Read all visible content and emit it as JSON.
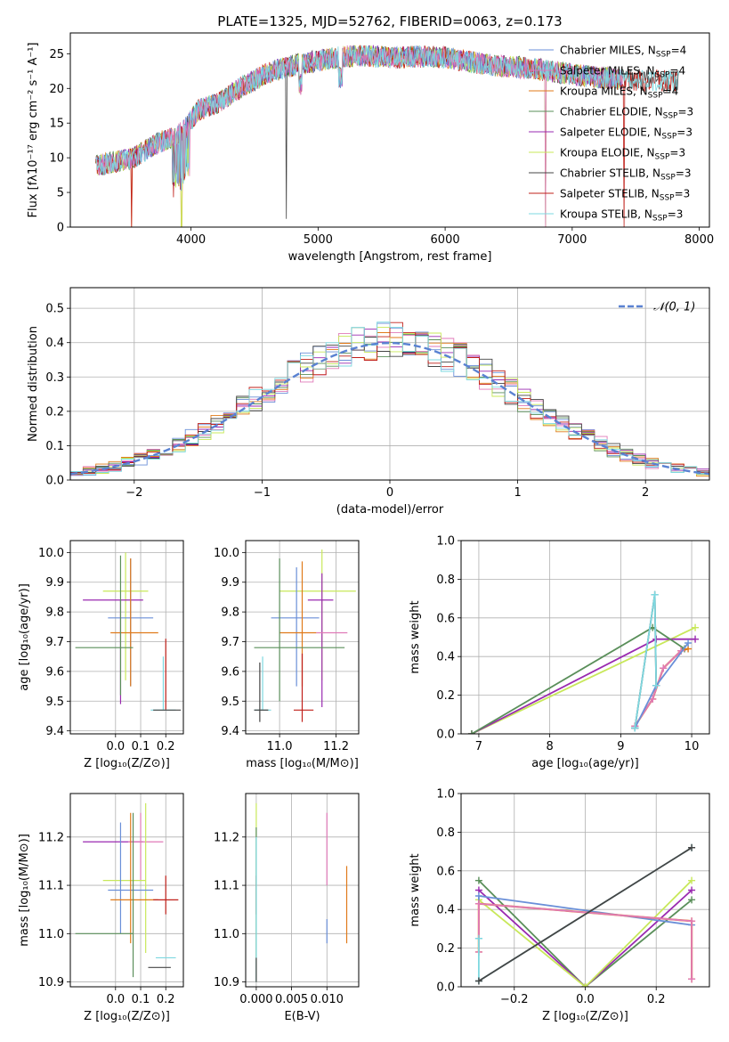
{
  "figure": {
    "title": "PLATE=1325, MJD=52762, FIBERID=0063, z=0.173"
  },
  "colors": {
    "Chabrier MILES": "#6a8fd8",
    "Salpeter MILES": "#e07ab8",
    "Kroupa MILES": "#e07a1a",
    "Chabrier ELODIE": "#5a8f5a",
    "Salpeter ELODIE": "#9a2ab0",
    "Kroupa ELODIE": "#c8e85a",
    "Chabrier STELIB": "#444444",
    "Salpeter STELIB": "#c0201a",
    "Kroupa STELIB": "#7ed8e0"
  },
  "chart_data": [
    {
      "id": "spectrum",
      "type": "line",
      "xlabel": "wavelength [Angstrom, rest frame]",
      "ylabel": "Flux [fλ10⁻¹⁷ erg cm⁻² s⁻¹ A⁻¹]",
      "xlim": [
        3050,
        8080
      ],
      "ylim": [
        0,
        28
      ],
      "xticks": [
        4000,
        5000,
        6000,
        7000,
        8000
      ],
      "yticks": [
        0,
        5,
        10,
        15,
        20,
        25
      ],
      "legend_placement": "right",
      "legend": [
        {
          "name": "Chabrier MILES, N",
          "sub": "SSP",
          "tail": "=4"
        },
        {
          "name": "Salpeter MILES, N",
          "sub": "SSP",
          "tail": "=4"
        },
        {
          "name": "Kroupa MILES, N",
          "sub": "SSP",
          "tail": "=4"
        },
        {
          "name": "Chabrier ELODIE, N",
          "sub": "SSP",
          "tail": "=3"
        },
        {
          "name": "Salpeter ELODIE, N",
          "sub": "SSP",
          "tail": "=3"
        },
        {
          "name": "Kroupa ELODIE, N",
          "sub": "SSP",
          "tail": "=3"
        },
        {
          "name": "Chabrier STELIB, N",
          "sub": "SSP",
          "tail": "=3"
        },
        {
          "name": "Salpeter STELIB, N",
          "sub": "SSP",
          "tail": "=3"
        },
        {
          "name": "Kroupa STELIB, N",
          "sub": "SSP",
          "tail": "=3"
        }
      ],
      "continuum": [
        [
          3250,
          8.8
        ],
        [
          3400,
          9.4
        ],
        [
          3550,
          10.0
        ],
        [
          3700,
          11.8
        ],
        [
          3850,
          13.0
        ],
        [
          3950,
          14.0
        ],
        [
          4050,
          16.8
        ],
        [
          4200,
          17.8
        ],
        [
          4400,
          20.2
        ],
        [
          4600,
          22.2
        ],
        [
          4800,
          23.3
        ],
        [
          5000,
          24.0
        ],
        [
          5200,
          24.6
        ],
        [
          5400,
          24.7
        ],
        [
          5600,
          24.4
        ],
        [
          5800,
          24.6
        ],
        [
          6000,
          24.5
        ],
        [
          6200,
          23.8
        ],
        [
          6400,
          23.3
        ],
        [
          6600,
          23.0
        ],
        [
          6800,
          22.6
        ],
        [
          7000,
          22.0
        ],
        [
          7200,
          21.6
        ],
        [
          7400,
          21.3
        ],
        [
          7600,
          21.2
        ],
        [
          7840,
          21.0
        ]
      ]
    },
    {
      "id": "residuals",
      "type": "bar",
      "xlabel": "(data-model)/error",
      "ylabel": "Normed distribution",
      "xlim": [
        -2.5,
        2.5
      ],
      "ylim": [
        0,
        0.56
      ],
      "xticks": [
        -2,
        -1,
        0,
        1,
        2
      ],
      "yticks": [
        0.0,
        0.1,
        0.2,
        0.3,
        0.4,
        0.5
      ],
      "grid": true,
      "legend_placement": "top-right",
      "legend": [
        {
          "name": "𝒩(0, 1)"
        }
      ],
      "bin_edges_start": -2.5,
      "bin_width": 0.1
    },
    {
      "id": "age-Z",
      "type": "scatter",
      "xlabel": "Z [log₁₀(Z/Z⊙)]",
      "ylabel": "age  [log₁₀(age/yr)]",
      "xlim": [
        -0.18,
        0.27
      ],
      "ylim": [
        9.39,
        10.04
      ],
      "xticks": [
        0.0,
        0.1,
        0.2
      ],
      "yticks": [
        9.4,
        9.5,
        9.6,
        9.7,
        9.8,
        9.9,
        10.0
      ],
      "grid": true,
      "points": [
        {
          "c": "Kroupa ELODIE",
          "x": 0.04,
          "y": 9.87,
          "xe": [
            -0.05,
            0.13
          ],
          "ye": [
            9.57,
            10.0
          ]
        },
        {
          "c": "Salpeter ELODIE",
          "x": 0.02,
          "y": 9.84,
          "xe": [
            -0.13,
            0.11
          ],
          "ye": [
            9.49,
            9.84
          ]
        },
        {
          "c": "Chabrier MILES",
          "x": 0.06,
          "y": 9.78,
          "xe": [
            -0.03,
            0.15
          ],
          "ye": [
            9.55,
            9.98
          ]
        },
        {
          "c": "Kroupa MILES",
          "x": 0.06,
          "y": 9.73,
          "xe": [
            -0.02,
            0.17
          ],
          "ye": [
            9.55,
            9.98
          ]
        },
        {
          "c": "Chabrier ELODIE",
          "x": 0.02,
          "y": 9.68,
          "xe": [
            -0.16,
            0.07
          ],
          "ye": [
            9.52,
            9.99
          ]
        },
        {
          "c": "Salpeter STELIB",
          "x": 0.2,
          "y": 9.64,
          "xe": [
            0.2,
            0.2
          ],
          "ye": [
            9.47,
            9.71
          ]
        },
        {
          "c": "Kroupa STELIB",
          "x": 0.19,
          "y": 9.47,
          "xe": [
            0.14,
            0.24
          ],
          "ye": [
            9.47,
            9.65
          ]
        },
        {
          "c": "Chabrier STELIB",
          "x": 0.2,
          "y": 9.47,
          "xe": [
            0.15,
            0.26
          ],
          "ye": [
            9.47,
            9.47
          ]
        }
      ]
    },
    {
      "id": "age-mass",
      "type": "scatter",
      "xlabel": "mass [log₁₀(M/M⊙)]",
      "ylabel": "",
      "xlim": [
        10.88,
        11.28
      ],
      "ylim": [
        9.39,
        10.04
      ],
      "xticks": [
        11.0,
        11.2
      ],
      "yticks": [
        9.4,
        9.5,
        9.6,
        9.7,
        9.8,
        9.9,
        10.0
      ],
      "grid": true,
      "points": [
        {
          "c": "Kroupa ELODIE",
          "x": 11.15,
          "y": 9.87,
          "xe": [
            11.0,
            11.27
          ],
          "ye": [
            9.57,
            10.01
          ]
        },
        {
          "c": "Salpeter ELODIE",
          "x": 11.15,
          "y": 9.84,
          "xe": [
            11.1,
            11.19
          ],
          "ye": [
            9.48,
            9.93
          ]
        },
        {
          "c": "Chabrier MILES",
          "x": 11.06,
          "y": 9.78,
          "xe": [
            10.97,
            11.14
          ],
          "ye": [
            9.55,
            9.95
          ]
        },
        {
          "c": "Kroupa MILES",
          "x": 11.08,
          "y": 9.73,
          "xe": [
            11.0,
            11.13
          ],
          "ye": [
            9.55,
            9.97
          ]
        },
        {
          "c": "Salpeter MILES",
          "x": 11.19,
          "y": 9.73,
          "xe": [
            11.13,
            11.24
          ],
          "ye": [
            9.73,
            9.73
          ]
        },
        {
          "c": "Chabrier ELODIE",
          "x": 11.0,
          "y": 9.68,
          "xe": [
            10.91,
            11.23
          ],
          "ye": [
            9.5,
            9.98
          ]
        },
        {
          "c": "Salpeter STELIB",
          "x": 11.08,
          "y": 9.47,
          "xe": [
            11.05,
            11.12
          ],
          "ye": [
            9.43,
            9.66
          ]
        },
        {
          "c": "Kroupa STELIB",
          "x": 10.94,
          "y": 9.47,
          "xe": [
            10.91,
            10.97
          ],
          "ye": [
            9.47,
            9.65
          ]
        },
        {
          "c": "Chabrier STELIB",
          "x": 10.93,
          "y": 9.47,
          "xe": [
            10.91,
            10.96
          ],
          "ye": [
            9.43,
            9.63
          ]
        }
      ]
    },
    {
      "id": "massweight-age",
      "type": "line",
      "xlabel": "age  [log₁₀(age/yr)]",
      "ylabel": "mass weight",
      "xlim": [
        6.75,
        10.25
      ],
      "ylim": [
        0,
        1
      ],
      "xticks": [
        7,
        8,
        9,
        10
      ],
      "yticks": [
        0.0,
        0.2,
        0.4,
        0.6,
        0.8,
        1.0
      ],
      "grid": true,
      "series": [
        {
          "c": "Kroupa ELODIE",
          "pts": [
            [
              6.9,
              0.0
            ],
            [
              10.05,
              0.55
            ]
          ]
        },
        {
          "c": "Salpeter ELODIE",
          "pts": [
            [
              6.9,
              0.0
            ],
            [
              9.5,
              0.49
            ],
            [
              10.05,
              0.49
            ]
          ]
        },
        {
          "c": "Chabrier ELODIE",
          "pts": [
            [
              6.9,
              0.0
            ],
            [
              9.45,
              0.55
            ],
            [
              9.9,
              0.44
            ]
          ]
        },
        {
          "c": "Kroupa MILES",
          "pts": [
            [
              9.2,
              0.04
            ],
            [
              9.45,
              0.18
            ],
            [
              9.6,
              0.34
            ],
            [
              9.85,
              0.43
            ],
            [
              9.95,
              0.44
            ]
          ]
        },
        {
          "c": "Salpeter MILES",
          "pts": [
            [
              9.2,
              0.04
            ],
            [
              9.45,
              0.18
            ],
            [
              9.6,
              0.34
            ],
            [
              9.85,
              0.43
            ]
          ]
        },
        {
          "c": "Chabrier MILES",
          "pts": [
            [
              9.2,
              0.03
            ],
            [
              9.5,
              0.25
            ],
            [
              9.95,
              0.47
            ]
          ]
        },
        {
          "c": "Chabrier STELIB",
          "pts": [
            [
              9.2,
              0.03
            ],
            [
              9.48,
              0.72
            ],
            [
              9.5,
              0.25
            ]
          ]
        },
        {
          "c": "Kroupa STELIB",
          "pts": [
            [
              9.2,
              0.03
            ],
            [
              9.48,
              0.72
            ],
            [
              9.5,
              0.25
            ]
          ]
        }
      ]
    },
    {
      "id": "mass-Z",
      "type": "scatter",
      "xlabel": "Z [log₁₀(Z/Z⊙)]",
      "ylabel": "mass [log₁₀(M/M⊙)]",
      "xlim": [
        -0.18,
        0.27
      ],
      "ylim": [
        10.89,
        11.29
      ],
      "xticks": [
        0.0,
        0.1,
        0.2
      ],
      "yticks": [
        10.9,
        11.0,
        11.1,
        11.2
      ],
      "grid": true,
      "points": [
        {
          "c": "Salpeter ELODIE",
          "x": 0.02,
          "y": 11.19,
          "xe": [
            -0.13,
            0.11
          ],
          "ye": [
            11.19,
            11.19
          ]
        },
        {
          "c": "Salpeter MILES",
          "x": 0.1,
          "y": 11.19,
          "xe": [
            0.05,
            0.19
          ],
          "ye": [
            11.11,
            11.25
          ]
        },
        {
          "c": "Kroupa ELODIE",
          "x": 0.12,
          "y": 11.11,
          "xe": [
            -0.05,
            0.12
          ],
          "ye": [
            10.96,
            11.27
          ]
        },
        {
          "c": "Chabrier MILES",
          "x": 0.02,
          "y": 11.09,
          "xe": [
            -0.03,
            0.15
          ],
          "ye": [
            11.0,
            11.23
          ]
        },
        {
          "c": "Kroupa MILES",
          "x": 0.06,
          "y": 11.07,
          "xe": [
            -0.02,
            0.17
          ],
          "ye": [
            10.98,
            11.25
          ]
        },
        {
          "c": "Salpeter STELIB",
          "x": 0.2,
          "y": 11.07,
          "xe": [
            0.15,
            0.25
          ],
          "ye": [
            11.04,
            11.12
          ]
        },
        {
          "c": "Chabrier ELODIE",
          "x": 0.07,
          "y": 11.0,
          "xe": [
            -0.16,
            0.07
          ],
          "ye": [
            10.91,
            11.25
          ]
        },
        {
          "c": "Kroupa STELIB",
          "x": 0.21,
          "y": 10.95,
          "xe": [
            0.16,
            0.24
          ],
          "ye": [
            10.95,
            10.95
          ]
        },
        {
          "c": "Chabrier STELIB",
          "x": 0.18,
          "y": 10.93,
          "xe": [
            0.13,
            0.22
          ],
          "ye": [
            10.93,
            10.93
          ]
        }
      ]
    },
    {
      "id": "mass-EBV",
      "type": "scatter",
      "xlabel": "E(B-V)",
      "ylabel": "",
      "xlim": [
        -0.0015,
        0.0145
      ],
      "ylim": [
        10.89,
        11.29
      ],
      "xticks": [
        0.0,
        0.005,
        0.01
      ],
      "xticklabels": [
        "0.000",
        "0.005",
        "0.010"
      ],
      "yticks": [
        10.9,
        11.0,
        11.1,
        11.2
      ],
      "grid": true,
      "points": [
        {
          "c": "Kroupa ELODIE",
          "x": 0.0,
          "y": 11.1,
          "xe": [
            0.0,
            0.0
          ],
          "ye": [
            10.95,
            11.27
          ]
        },
        {
          "c": "Salpeter STELIB",
          "x": 0.0,
          "y": 11.08,
          "xe": [
            0.0,
            0.0
          ],
          "ye": [
            11.04,
            11.12
          ]
        },
        {
          "c": "Chabrier ELODIE",
          "x": 0.0,
          "y": 11.0,
          "xe": [
            0.0,
            0.0
          ],
          "ye": [
            10.9,
            11.22
          ]
        },
        {
          "c": "Kroupa STELIB",
          "x": 0.0,
          "y": 10.95,
          "xe": [
            0.0,
            0.0
          ],
          "ye": [
            10.9,
            11.2
          ]
        },
        {
          "c": "Chabrier STELIB",
          "x": 0.0,
          "y": 10.93,
          "xe": [
            0.0,
            0.0
          ],
          "ye": [
            10.9,
            10.95
          ]
        },
        {
          "c": "Salpeter MILES",
          "x": 0.01,
          "y": 11.19,
          "xe": [
            0.01,
            0.01
          ],
          "ye": [
            11.1,
            11.25
          ]
        },
        {
          "c": "Chabrier MILES",
          "x": 0.01,
          "y": 11.0,
          "xe": [
            0.01,
            0.01
          ],
          "ye": [
            10.98,
            11.03
          ]
        },
        {
          "c": "Kroupa MILES",
          "x": 0.0128,
          "y": 11.07,
          "xe": [
            0.0128,
            0.0128
          ],
          "ye": [
            10.98,
            11.14
          ]
        }
      ]
    },
    {
      "id": "massweight-Z",
      "type": "line",
      "xlabel": "Z [log₁₀(Z/Z⊙)]",
      "ylabel": "mass weight",
      "xlim": [
        -0.35,
        0.35
      ],
      "ylim": [
        0,
        1
      ],
      "xticks": [
        -0.2,
        0.0,
        0.2
      ],
      "yticks": [
        0.0,
        0.2,
        0.4,
        0.6,
        0.8,
        1.0
      ],
      "grid": true,
      "series": [
        {
          "c": "Chabrier ELODIE",
          "pts": [
            [
              -0.3,
              0.55
            ],
            [
              0.0,
              0.0
            ],
            [
              0.3,
              0.45
            ]
          ]
        },
        {
          "c": "Salpeter ELODIE",
          "pts": [
            [
              -0.3,
              0.5
            ],
            [
              0.0,
              0.0
            ],
            [
              0.3,
              0.5
            ]
          ]
        },
        {
          "c": "Kroupa ELODIE",
          "pts": [
            [
              -0.3,
              0.45
            ],
            [
              0.0,
              0.0
            ],
            [
              0.3,
              0.55
            ]
          ]
        },
        {
          "c": "Chabrier MILES",
          "pts": [
            [
              -0.3,
              0.25
            ],
            [
              -0.3,
              0.47
            ],
            [
              0.3,
              0.32
            ]
          ]
        },
        {
          "c": "Kroupa MILES",
          "pts": [
            [
              -0.3,
              0.18
            ],
            [
              -0.3,
              0.43
            ],
            [
              0.3,
              0.34
            ],
            [
              0.3,
              0.04
            ]
          ]
        },
        {
          "c": "Salpeter MILES",
          "pts": [
            [
              -0.3,
              0.18
            ],
            [
              -0.3,
              0.43
            ],
            [
              0.3,
              0.34
            ],
            [
              0.3,
              0.04
            ]
          ]
        },
        {
          "c": "Kroupa STELIB",
          "pts": [
            [
              -0.3,
              0.25
            ],
            [
              -0.3,
              0.03
            ],
            [
              0.3,
              0.72
            ]
          ]
        },
        {
          "c": "Chabrier STELIB",
          "pts": [
            [
              -0.3,
              0.03
            ],
            [
              0.3,
              0.72
            ]
          ]
        }
      ]
    }
  ]
}
